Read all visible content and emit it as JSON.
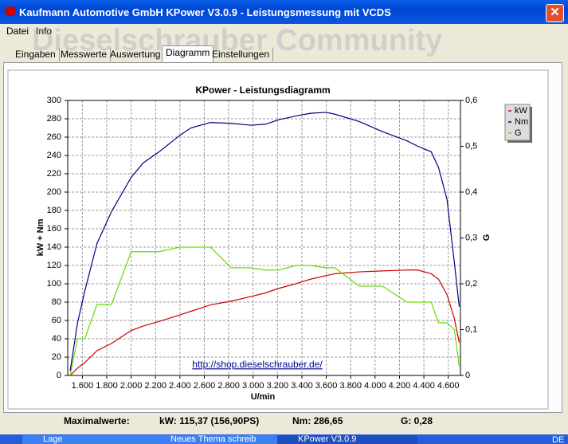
{
  "window": {
    "title": "Kaufmann Automotive GmbH  KPower V3.0.9 - Leistungsmessung mit VCDS"
  },
  "menu": [
    "Datei",
    "Info"
  ],
  "watermark": "Dieselschrauber Community",
  "tabs": [
    "Eingaben",
    "Messwerte",
    "Auswertung",
    "Diagramm",
    "Einstellungen"
  ],
  "chart_data": {
    "type": "line",
    "title": "KPower - Leistungsdiagramm",
    "x_label": "U/min",
    "y_label": "kW + Nm",
    "y2_label": "G",
    "annotation": "http://shop.dieselschrauber.de/",
    "x": [
      1500,
      1560,
      1620,
      1720,
      1840,
      2000,
      2100,
      2230,
      2400,
      2490,
      2650,
      2820,
      2980,
      3100,
      3210,
      3350,
      3470,
      3600,
      3670,
      3870,
      4060,
      4260,
      4350,
      4460,
      4520,
      4590,
      4650,
      4690
    ],
    "series": [
      {
        "name": "kW",
        "color": "#cc0000",
        "values": [
          0,
          8,
          14,
          27,
          35,
          49,
          54,
          59,
          66,
          70,
          77,
          81,
          86,
          90,
          95,
          100,
          105,
          109,
          111,
          113,
          114,
          115,
          115,
          111,
          105,
          88,
          62,
          36
        ]
      },
      {
        "name": "Nm",
        "color": "#000080",
        "values": [
          5,
          57,
          92,
          144,
          179,
          216,
          232,
          244,
          262,
          270,
          276,
          275,
          273,
          274,
          279,
          283,
          286,
          287,
          285,
          277,
          266,
          256,
          250,
          244,
          227,
          192,
          123,
          75
        ]
      },
      {
        "name": "G",
        "color": "#66dd00",
        "axis": "y2",
        "values": [
          0,
          0.08,
          0.08,
          0.155,
          0.155,
          0.27,
          0.27,
          0.27,
          0.28,
          0.28,
          0.28,
          0.235,
          0.235,
          0.23,
          0.23,
          0.24,
          0.24,
          0.235,
          0.235,
          0.195,
          0.195,
          0.16,
          0.16,
          0.16,
          0.115,
          0.115,
          0.1,
          0.02
        ]
      }
    ],
    "xlim": [
      1480,
      4700
    ],
    "xticks": [
      {
        "value": 1600,
        "label": "1.600"
      },
      {
        "value": 1800,
        "label": "1.800"
      },
      {
        "value": 2000,
        "label": "2.000"
      },
      {
        "value": 2200,
        "label": "2.200"
      },
      {
        "value": 2400,
        "label": "2.400"
      },
      {
        "value": 2600,
        "label": "2.600"
      },
      {
        "value": 2800,
        "label": "2.800"
      },
      {
        "value": 3000,
        "label": "3.000"
      },
      {
        "value": 3200,
        "label": "3.200"
      },
      {
        "value": 3400,
        "label": "3.400"
      },
      {
        "value": 3600,
        "label": "3.600"
      },
      {
        "value": 3800,
        "label": "3.800"
      },
      {
        "value": 4000,
        "label": "4.000"
      },
      {
        "value": 4200,
        "label": "4.200"
      },
      {
        "value": 4400,
        "label": "4.400"
      },
      {
        "value": 4600,
        "label": "4.600"
      }
    ],
    "ylim": [
      0,
      300
    ],
    "yticks": [
      0,
      20,
      40,
      60,
      80,
      100,
      120,
      140,
      160,
      180,
      200,
      220,
      240,
      260,
      280,
      300
    ],
    "y2lim": [
      0,
      0.6
    ],
    "y2ticks": [
      0,
      {
        "value": 0.1,
        "label": "0,1"
      },
      {
        "value": 0.2,
        "label": "0,2"
      },
      {
        "value": 0.3,
        "label": "0,3"
      },
      {
        "value": 0.4,
        "label": "0,4"
      },
      {
        "value": 0.5,
        "label": "0,5"
      },
      {
        "value": 0.6,
        "label": "0,6"
      }
    ],
    "grid": true
  },
  "summary": {
    "label": "Maximalwerte:",
    "kw": "kW: 115,37 (156,90PS)",
    "nm": "Nm: 286,65",
    "g": "G: 0,28"
  },
  "taskbar": [
    "Lage",
    "Neues Thema schreib",
    "KPower V3.0.9",
    "DE"
  ]
}
